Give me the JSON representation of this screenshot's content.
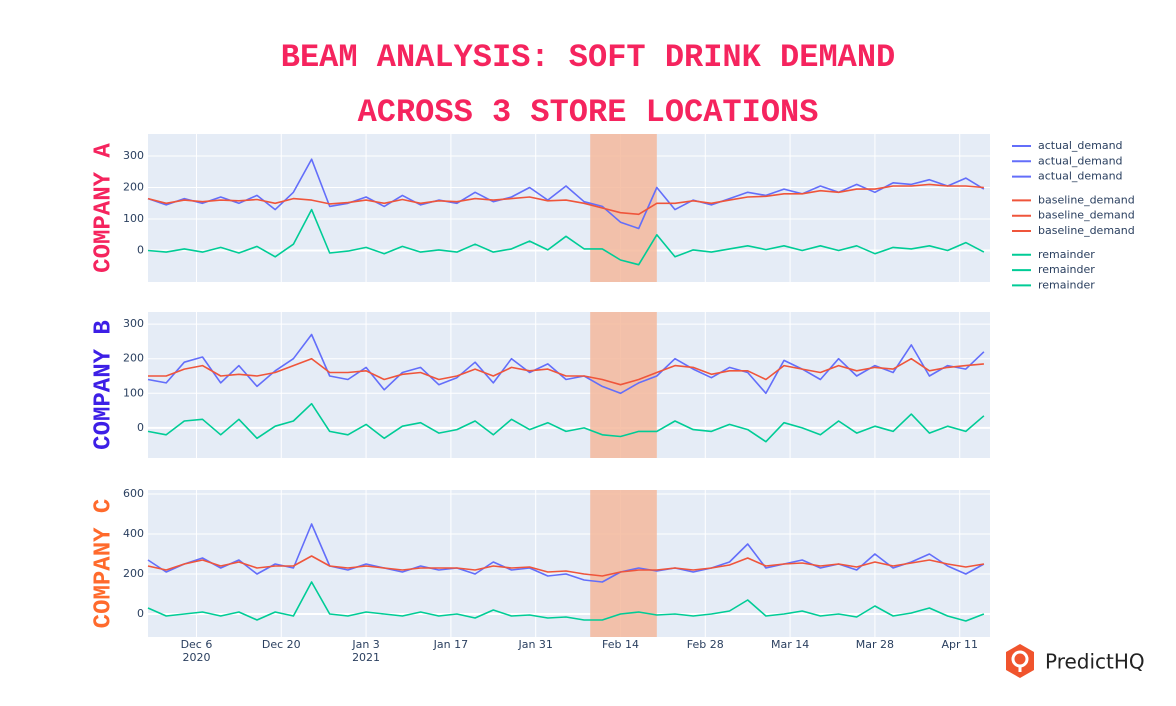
{
  "title": "BEAM ANALYSIS: SOFT DRINK DEMAND ACROSS 3 STORE LOCATIONS",
  "logo": "PredictHQ",
  "chart_data": [
    {
      "type": "line",
      "ylabel": "COMPANY A",
      "label_color": "#f5245e",
      "x": [
        "2020-11-28",
        "2020-12-01",
        "2020-12-04",
        "2020-12-07",
        "2020-12-10",
        "2020-12-13",
        "2020-12-16",
        "2020-12-19",
        "2020-12-22",
        "2020-12-25",
        "2020-12-28",
        "2020-12-31",
        "2021-01-03",
        "2021-01-06",
        "2021-01-09",
        "2021-01-12",
        "2021-01-15",
        "2021-01-18",
        "2021-01-21",
        "2021-01-24",
        "2021-01-27",
        "2021-01-30",
        "2021-02-02",
        "2021-02-05",
        "2021-02-08",
        "2021-02-11",
        "2021-02-14",
        "2021-02-17",
        "2021-02-20",
        "2021-02-23",
        "2021-02-26",
        "2021-03-01",
        "2021-03-04",
        "2021-03-07",
        "2021-03-10",
        "2021-03-13",
        "2021-03-16",
        "2021-03-19",
        "2021-03-22",
        "2021-03-25",
        "2021-03-28",
        "2021-03-31",
        "2021-04-03",
        "2021-04-06",
        "2021-04-09",
        "2021-04-12",
        "2021-04-15"
      ],
      "series": [
        {
          "name": "actual_demand",
          "color": "#636efa",
          "values": [
            165,
            145,
            165,
            150,
            170,
            150,
            175,
            130,
            185,
            290,
            140,
            150,
            170,
            140,
            175,
            145,
            160,
            150,
            185,
            155,
            170,
            200,
            160,
            205,
            155,
            140,
            90,
            70,
            200,
            130,
            160,
            145,
            165,
            185,
            175,
            195,
            180,
            205,
            185,
            210,
            185,
            215,
            210,
            225,
            205,
            230,
            195
          ]
        },
        {
          "name": "baseline_demand",
          "color": "#ef553b",
          "values": [
            165,
            150,
            160,
            155,
            160,
            158,
            162,
            150,
            165,
            160,
            148,
            152,
            160,
            150,
            162,
            150,
            158,
            155,
            165,
            160,
            165,
            170,
            158,
            160,
            150,
            135,
            120,
            115,
            150,
            150,
            158,
            150,
            160,
            170,
            172,
            180,
            180,
            190,
            185,
            195,
            195,
            205,
            205,
            210,
            205,
            205,
            200
          ]
        },
        {
          "name": "remainder",
          "color": "#00cc96",
          "values": [
            0,
            -5,
            5,
            -5,
            10,
            -8,
            13,
            -20,
            20,
            130,
            -8,
            -2,
            10,
            -10,
            13,
            -5,
            2,
            -5,
            20,
            -5,
            5,
            30,
            2,
            45,
            5,
            5,
            -30,
            -45,
            50,
            -20,
            2,
            -5,
            5,
            15,
            3,
            15,
            0,
            15,
            0,
            15,
            -10,
            10,
            5,
            15,
            0,
            25,
            -5
          ]
        }
      ],
      "ylim": [
        -100,
        370
      ],
      "yticks": [
        0,
        100,
        200,
        300
      ]
    },
    {
      "type": "line",
      "ylabel": "COMPANY B",
      "label_color": "#3d1fe6",
      "x": [
        "2020-11-28",
        "2020-12-01",
        "2020-12-04",
        "2020-12-07",
        "2020-12-10",
        "2020-12-13",
        "2020-12-16",
        "2020-12-19",
        "2020-12-22",
        "2020-12-25",
        "2020-12-28",
        "2020-12-31",
        "2021-01-03",
        "2021-01-06",
        "2021-01-09",
        "2021-01-12",
        "2021-01-15",
        "2021-01-18",
        "2021-01-21",
        "2021-01-24",
        "2021-01-27",
        "2021-01-30",
        "2021-02-02",
        "2021-02-05",
        "2021-02-08",
        "2021-02-11",
        "2021-02-14",
        "2021-02-17",
        "2021-02-20",
        "2021-02-23",
        "2021-02-26",
        "2021-03-01",
        "2021-03-04",
        "2021-03-07",
        "2021-03-10",
        "2021-03-13",
        "2021-03-16",
        "2021-03-19",
        "2021-03-22",
        "2021-03-25",
        "2021-03-28",
        "2021-03-31",
        "2021-04-03",
        "2021-04-06",
        "2021-04-09",
        "2021-04-12",
        "2021-04-15"
      ],
      "series": [
        {
          "name": "actual_demand",
          "color": "#636efa",
          "values": [
            140,
            130,
            190,
            205,
            130,
            180,
            120,
            165,
            200,
            270,
            150,
            140,
            175,
            110,
            160,
            175,
            125,
            145,
            190,
            130,
            200,
            160,
            185,
            140,
            150,
            120,
            100,
            130,
            150,
            200,
            170,
            145,
            175,
            160,
            100,
            195,
            170,
            140,
            200,
            150,
            180,
            160,
            240,
            150,
            180,
            170,
            220
          ]
        },
        {
          "name": "baseline_demand",
          "color": "#ef553b",
          "values": [
            150,
            150,
            170,
            180,
            150,
            155,
            150,
            160,
            180,
            200,
            160,
            160,
            165,
            140,
            155,
            160,
            140,
            150,
            170,
            150,
            175,
            165,
            170,
            150,
            150,
            140,
            125,
            140,
            160,
            180,
            175,
            155,
            165,
            165,
            140,
            180,
            170,
            160,
            180,
            165,
            175,
            170,
            200,
            165,
            175,
            180,
            185
          ]
        },
        {
          "name": "remainder",
          "color": "#00cc96",
          "values": [
            -10,
            -20,
            20,
            25,
            -20,
            25,
            -30,
            5,
            20,
            70,
            -10,
            -20,
            10,
            -30,
            5,
            15,
            -15,
            -5,
            20,
            -20,
            25,
            -5,
            15,
            -10,
            0,
            -20,
            -25,
            -10,
            -10,
            20,
            -5,
            -10,
            10,
            -5,
            -40,
            15,
            0,
            -20,
            20,
            -15,
            5,
            -10,
            40,
            -15,
            5,
            -10,
            35
          ]
        }
      ],
      "ylim": [
        -87,
        335
      ],
      "yticks": [
        0,
        100,
        200,
        300
      ]
    },
    {
      "type": "line",
      "ylabel": "COMPANY C",
      "label_color": "#ff6a2c",
      "x": [
        "2020-11-28",
        "2020-12-01",
        "2020-12-04",
        "2020-12-07",
        "2020-12-10",
        "2020-12-13",
        "2020-12-16",
        "2020-12-19",
        "2020-12-22",
        "2020-12-25",
        "2020-12-28",
        "2020-12-31",
        "2021-01-03",
        "2021-01-06",
        "2021-01-09",
        "2021-01-12",
        "2021-01-15",
        "2021-01-18",
        "2021-01-21",
        "2021-01-24",
        "2021-01-27",
        "2021-01-30",
        "2021-02-02",
        "2021-02-05",
        "2021-02-08",
        "2021-02-11",
        "2021-02-14",
        "2021-02-17",
        "2021-02-20",
        "2021-02-23",
        "2021-02-26",
        "2021-03-01",
        "2021-03-04",
        "2021-03-07",
        "2021-03-10",
        "2021-03-13",
        "2021-03-16",
        "2021-03-19",
        "2021-03-22",
        "2021-03-25",
        "2021-03-28",
        "2021-03-31",
        "2021-04-03",
        "2021-04-06",
        "2021-04-09",
        "2021-04-12",
        "2021-04-15"
      ],
      "series": [
        {
          "name": "actual_demand",
          "color": "#636efa",
          "values": [
            270,
            210,
            250,
            280,
            230,
            270,
            200,
            250,
            230,
            450,
            240,
            220,
            250,
            230,
            210,
            240,
            220,
            230,
            200,
            260,
            220,
            230,
            190,
            200,
            170,
            160,
            210,
            230,
            215,
            230,
            210,
            230,
            260,
            350,
            230,
            250,
            270,
            230,
            250,
            220,
            300,
            230,
            260,
            300,
            240,
            200,
            250
          ]
        },
        {
          "name": "baseline_demand",
          "color": "#ef553b",
          "values": [
            240,
            220,
            250,
            270,
            240,
            260,
            230,
            240,
            240,
            290,
            240,
            230,
            240,
            230,
            220,
            230,
            230,
            230,
            220,
            240,
            230,
            235,
            210,
            215,
            200,
            190,
            210,
            220,
            220,
            230,
            220,
            230,
            245,
            280,
            240,
            250,
            255,
            240,
            250,
            235,
            260,
            240,
            255,
            270,
            250,
            235,
            250
          ]
        },
        {
          "name": "remainder",
          "color": "#00cc96",
          "values": [
            30,
            -10,
            0,
            10,
            -10,
            10,
            -30,
            10,
            -10,
            160,
            0,
            -10,
            10,
            0,
            -10,
            10,
            -10,
            0,
            -20,
            20,
            -10,
            -5,
            -20,
            -15,
            -30,
            -30,
            0,
            10,
            -5,
            0,
            -10,
            0,
            15,
            70,
            -10,
            0,
            15,
            -10,
            0,
            -15,
            40,
            -10,
            5,
            30,
            -10,
            -35,
            0
          ]
        }
      ],
      "ylim": [
        -115,
        620
      ],
      "yticks": [
        0,
        200,
        400,
        600
      ],
      "xlim": [
        "2020-11-28",
        "2021-04-16"
      ],
      "xticks": [
        {
          "value": "2020-12-06",
          "label": "Dec 6",
          "year": "2020"
        },
        {
          "value": "2020-12-20",
          "label": "Dec 20"
        },
        {
          "value": "2021-01-03",
          "label": "Jan 3",
          "year": "2021"
        },
        {
          "value": "2021-01-17",
          "label": "Jan 17"
        },
        {
          "value": "2021-01-31",
          "label": "Jan 31"
        },
        {
          "value": "2021-02-14",
          "label": "Feb 14"
        },
        {
          "value": "2021-02-28",
          "label": "Feb 28"
        },
        {
          "value": "2021-03-14",
          "label": "Mar 14"
        },
        {
          "value": "2021-03-28",
          "label": "Mar 28"
        },
        {
          "value": "2021-04-11",
          "label": "Apr 11"
        }
      ],
      "highlight": [
        "2021-02-09",
        "2021-02-20"
      ],
      "highlight_color": "#f4b89c"
    }
  ]
}
